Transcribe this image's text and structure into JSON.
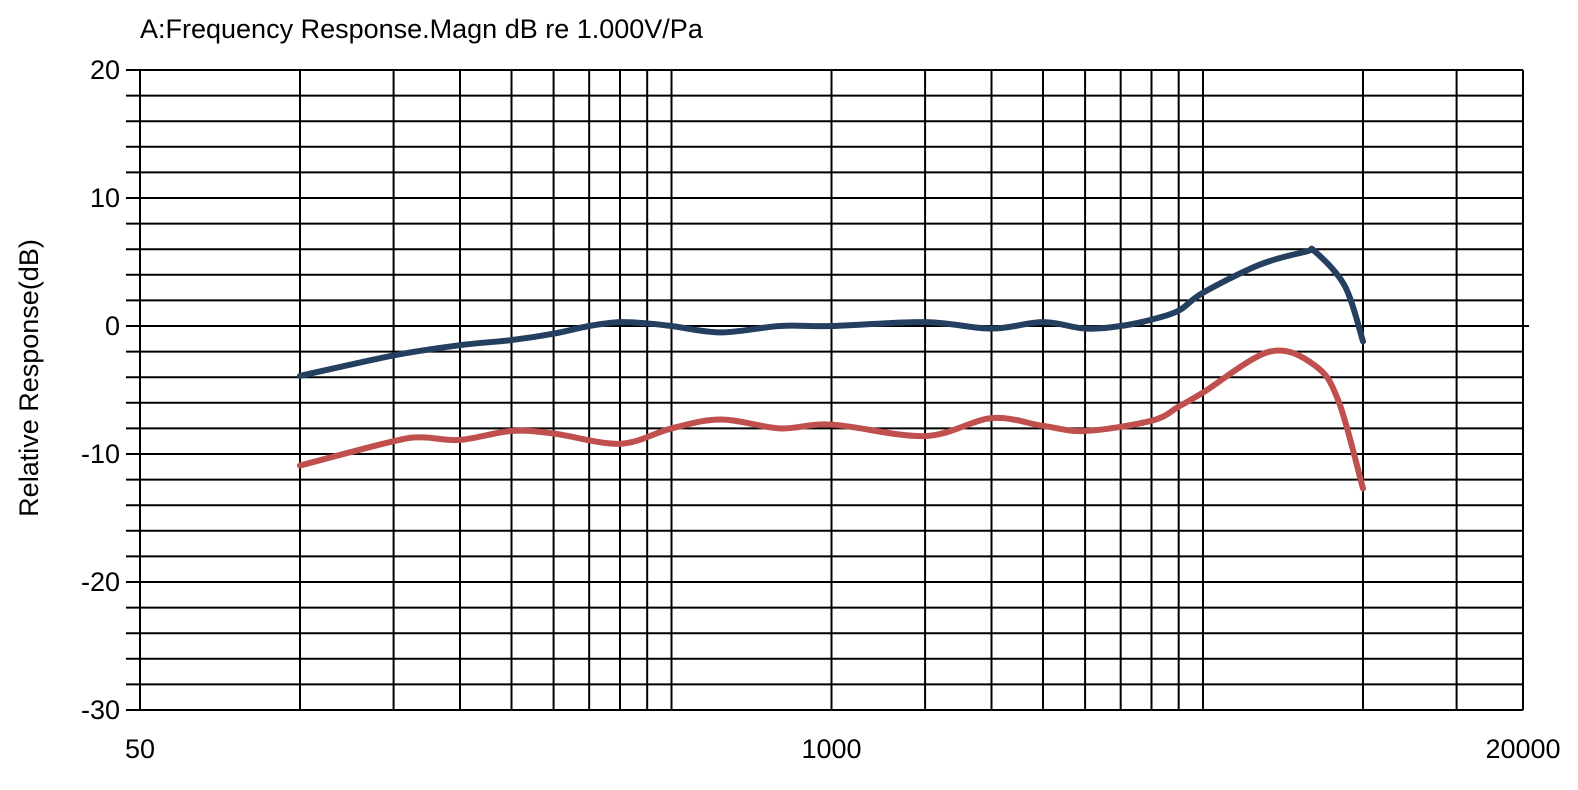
{
  "chart_data": {
    "type": "line",
    "title": "A:Frequency Response.Magn dB re 1.000V/Pa",
    "xlabel": "",
    "ylabel": "Relative Response(dB)",
    "xscale": "log",
    "xlim": [
      50,
      20000
    ],
    "ylim": [
      -30,
      20
    ],
    "x_tick_labels": [
      "50",
      "1000",
      "20000"
    ],
    "x_tick_values": [
      50,
      1000,
      20000
    ],
    "y_tick_labels": [
      "20",
      "10",
      "0",
      "-10",
      "-20",
      "-30"
    ],
    "y_tick_values": [
      20,
      10,
      0,
      -10,
      -20,
      -30
    ],
    "grid": true,
    "x_gridlines": [
      100,
      150,
      200,
      250,
      300,
      350,
      400,
      450,
      500,
      1000,
      1500,
      2000,
      2500,
      3000,
      3500,
      4000,
      4500,
      5000,
      10000,
      15000,
      20000
    ],
    "y_grid_step": 2,
    "series": [
      {
        "color": "#243f60",
        "points": [
          [
            100,
            -3.9
          ],
          [
            150,
            -2.3
          ],
          [
            200,
            -1.5
          ],
          [
            250,
            -1.1
          ],
          [
            300,
            -0.6
          ],
          [
            350,
            0.0
          ],
          [
            400,
            0.3
          ],
          [
            450,
            0.2
          ],
          [
            500,
            0.0
          ],
          [
            620,
            -0.5
          ],
          [
            800,
            0.0
          ],
          [
            1000,
            0.0
          ],
          [
            1500,
            0.3
          ],
          [
            2000,
            -0.2
          ],
          [
            2500,
            0.3
          ],
          [
            3000,
            -0.2
          ],
          [
            3500,
            0.0
          ],
          [
            4000,
            0.5
          ],
          [
            4500,
            1.2
          ],
          [
            5000,
            2.6
          ],
          [
            6400,
            4.8
          ],
          [
            7800,
            5.8
          ],
          [
            8130,
            5.8
          ],
          [
            9250,
            3.1
          ],
          [
            10000,
            -1.2
          ]
        ]
      },
      {
        "color": "#c0504d",
        "points": [
          [
            100,
            -10.9
          ],
          [
            150,
            -9.0
          ],
          [
            170,
            -8.7
          ],
          [
            200,
            -8.9
          ],
          [
            250,
            -8.2
          ],
          [
            300,
            -8.4
          ],
          [
            400,
            -9.2
          ],
          [
            500,
            -8.0
          ],
          [
            620,
            -7.3
          ],
          [
            800,
            -8.0
          ],
          [
            1000,
            -7.7
          ],
          [
            1500,
            -8.6
          ],
          [
            2000,
            -7.2
          ],
          [
            2500,
            -7.8
          ],
          [
            3000,
            -8.2
          ],
          [
            4000,
            -7.4
          ],
          [
            4500,
            -6.3
          ],
          [
            5000,
            -5.2
          ],
          [
            6680,
            -2.0
          ],
          [
            8130,
            -3.1
          ],
          [
            9000,
            -5.9
          ],
          [
            10000,
            -12.7
          ]
        ]
      }
    ]
  }
}
